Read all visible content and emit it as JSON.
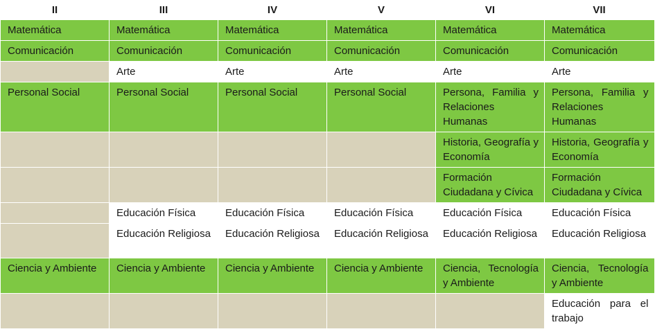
{
  "grades": [
    "II",
    "III",
    "IV",
    "V",
    "VI",
    "VII"
  ],
  "rows": [
    {
      "cells": [
        {
          "text": "Matemática",
          "bg": "green"
        },
        {
          "text": "Matemática",
          "bg": "green"
        },
        {
          "text": "Matemática",
          "bg": "green"
        },
        {
          "text": "Matemática",
          "bg": "green"
        },
        {
          "text": "Matemática",
          "bg": "green"
        },
        {
          "text": "Matemática",
          "bg": "green"
        }
      ]
    },
    {
      "cells": [
        {
          "text": "Comunicación",
          "bg": "green"
        },
        {
          "text": "Comunicación",
          "bg": "green"
        },
        {
          "text": "Comunicación",
          "bg": "green"
        },
        {
          "text": "Comunicación",
          "bg": "green"
        },
        {
          "text": "Comunicación",
          "bg": "green"
        },
        {
          "text": "Comunicación",
          "bg": "green"
        }
      ]
    },
    {
      "cells": [
        {
          "text": "",
          "bg": "tan"
        },
        {
          "text": "Arte",
          "bg": "white"
        },
        {
          "text": "Arte",
          "bg": "white"
        },
        {
          "text": "Arte",
          "bg": "white"
        },
        {
          "text": "Arte",
          "bg": "white"
        },
        {
          "text": "Arte",
          "bg": "white"
        }
      ]
    },
    {
      "cells": [
        {
          "text": "Personal Social",
          "bg": "green"
        },
        {
          "text": "Personal Social",
          "bg": "green"
        },
        {
          "text": "Personal Social",
          "bg": "green"
        },
        {
          "text": "Personal Social",
          "bg": "green"
        },
        {
          "text": "Persona, Familia y Relaciones Humanas",
          "bg": "green"
        },
        {
          "text": "Persona, Familia y Relaciones Humanas",
          "bg": "green"
        }
      ]
    },
    {
      "cells": [
        {
          "text": "",
          "bg": "tan"
        },
        {
          "text": "",
          "bg": "tan"
        },
        {
          "text": "",
          "bg": "tan"
        },
        {
          "text": "",
          "bg": "tan"
        },
        {
          "text": "Historia, Geografía y Economía",
          "bg": "green"
        },
        {
          "text": "Historia, Geografía y Economía",
          "bg": "green"
        }
      ]
    },
    {
      "cells": [
        {
          "text": "",
          "bg": "tan"
        },
        {
          "text": "",
          "bg": "tan"
        },
        {
          "text": "",
          "bg": "tan"
        },
        {
          "text": "",
          "bg": "tan"
        },
        {
          "text": "Formación Ciudadana y Cívica",
          "bg": "green"
        },
        {
          "text": "Formación Ciudadana y Cívica",
          "bg": "green"
        }
      ]
    },
    {
      "cells": [
        {
          "text": "",
          "bg": "tan"
        },
        {
          "text": "Educación Física",
          "bg": "white"
        },
        {
          "text": "Educación Física",
          "bg": "white"
        },
        {
          "text": "Educación Física",
          "bg": "white"
        },
        {
          "text": "Educación Física",
          "bg": "white"
        },
        {
          "text": "Educación Física",
          "bg": "white"
        }
      ]
    },
    {
      "cells": [
        {
          "text": "",
          "bg": "tan"
        },
        {
          "text": "Educación Religiosa",
          "bg": "white"
        },
        {
          "text": "Educación Religiosa",
          "bg": "white"
        },
        {
          "text": "Educación Religiosa",
          "bg": "white"
        },
        {
          "text": "Educación Religiosa",
          "bg": "white"
        },
        {
          "text": "Educación Religiosa",
          "bg": "white"
        }
      ]
    },
    {
      "cells": [
        {
          "text": "Ciencia y Ambiente",
          "bg": "green"
        },
        {
          "text": "Ciencia y Ambiente",
          "bg": "green"
        },
        {
          "text": "Ciencia y Ambiente",
          "bg": "green"
        },
        {
          "text": "Ciencia y Ambiente",
          "bg": "green"
        },
        {
          "text": "Ciencia, Tecnología y Ambiente",
          "bg": "green"
        },
        {
          "text": "Ciencia, Tecnología y Ambiente",
          "bg": "green"
        }
      ]
    },
    {
      "cells": [
        {
          "text": "",
          "bg": "tan"
        },
        {
          "text": "",
          "bg": "tan"
        },
        {
          "text": "",
          "bg": "tan"
        },
        {
          "text": "",
          "bg": "tan"
        },
        {
          "text": "",
          "bg": "tan"
        },
        {
          "text": "Educación para el trabajo",
          "bg": "white"
        }
      ]
    }
  ],
  "colors": {
    "green": "#7ec843",
    "tan": "#d8d2ba",
    "white": "#ffffff"
  }
}
